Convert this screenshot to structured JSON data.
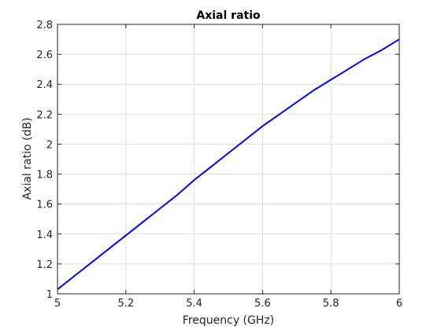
{
  "chart_data": {
    "type": "line",
    "title": "Axial ratio",
    "xlabel": "Frequency (GHz)",
    "ylabel": "Axial ratio (dB)",
    "xlim": [
      5,
      6
    ],
    "ylim": [
      1,
      2.8
    ],
    "xticks": [
      5,
      5.2,
      5.4,
      5.6,
      5.8,
      6
    ],
    "xtick_labels": [
      "5",
      "5.2",
      "5.4",
      "5.6",
      "5.8",
      "6"
    ],
    "yticks": [
      1,
      1.2,
      1.4,
      1.6,
      1.8,
      2,
      2.2,
      2.4,
      2.6,
      2.8
    ],
    "ytick_labels": [
      "1",
      "1.2",
      "1.4",
      "1.6",
      "1.8",
      "2",
      "2.2",
      "2.4",
      "2.6",
      "2.8"
    ],
    "grid": true,
    "series": [
      {
        "color": "#0000ff",
        "x": [
          5.0,
          5.05,
          5.1,
          5.15,
          5.2,
          5.25,
          5.3,
          5.35,
          5.4,
          5.45,
          5.5,
          5.55,
          5.6,
          5.65,
          5.7,
          5.75,
          5.8,
          5.85,
          5.9,
          5.95,
          6.0
        ],
        "y": [
          1.03,
          1.12,
          1.21,
          1.3,
          1.39,
          1.48,
          1.57,
          1.66,
          1.76,
          1.85,
          1.94,
          2.03,
          2.12,
          2.2,
          2.28,
          2.36,
          2.43,
          2.5,
          2.57,
          2.63,
          2.7
        ]
      }
    ]
  }
}
